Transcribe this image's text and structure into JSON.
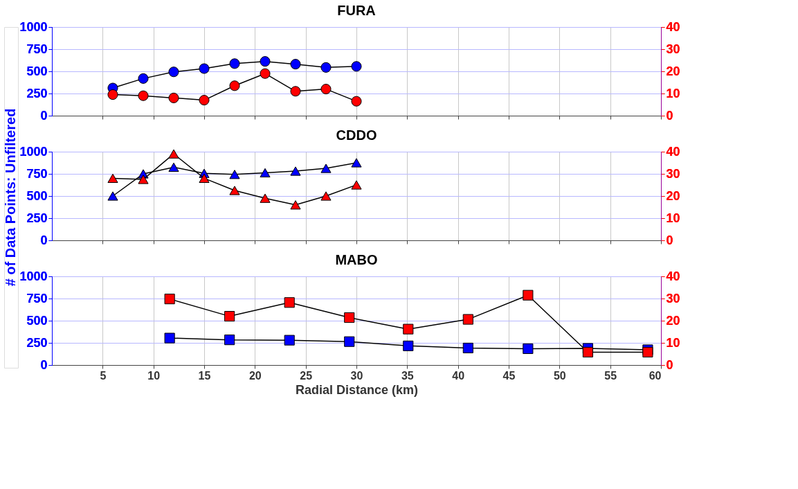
{
  "chart_data": [
    {
      "type": "line",
      "title": "FURA",
      "marker": "circle",
      "grid": true,
      "tick_labels": "y",
      "xlim": [
        0,
        60
      ],
      "xticks": [
        5,
        10,
        15,
        20,
        25,
        30,
        35,
        40,
        45,
        50,
        55,
        60
      ],
      "ylim": [
        0,
        1000
      ],
      "yticks": [
        0,
        250,
        500,
        750,
        1000
      ],
      "y2lim": [
        0,
        40
      ],
      "y2ticks": [
        0,
        10,
        20,
        30,
        40
      ],
      "series": [
        {
          "color": "#0000ff",
          "x": [
            6,
            9,
            12,
            15,
            18,
            21,
            24,
            27,
            30
          ],
          "values": [
            312,
            419,
            494,
            531,
            587,
            612,
            581,
            544,
            556
          ]
        },
        {
          "color": "#ff0000",
          "axis": "y2",
          "x": [
            6,
            9,
            12,
            15,
            18,
            21,
            24,
            27,
            30
          ],
          "values": [
            9.5,
            9,
            8,
            7,
            13.5,
            19,
            11,
            12,
            6.5
          ]
        }
      ]
    },
    {
      "type": "line",
      "title": "CDDO",
      "ylabel": "# of Data Points: Unfiltered",
      "marker": "triangle",
      "grid": true,
      "tick_labels": "y",
      "xlim": [
        0,
        60
      ],
      "xticks": [
        5,
        10,
        15,
        20,
        25,
        30,
        35,
        40,
        45,
        50,
        55,
        60
      ],
      "ylim": [
        0,
        1000
      ],
      "yticks": [
        0,
        250,
        500,
        750,
        1000
      ],
      "y2lim": [
        0,
        40
      ],
      "y2ticks": [
        0,
        10,
        20,
        30,
        40
      ],
      "series": [
        {
          "color": "#0000ff",
          "x": [
            6,
            9,
            12,
            15,
            18,
            21,
            24,
            27,
            30
          ],
          "values": [
            500,
            750,
            825,
            756,
            744,
            762,
            781,
            812,
            875
          ]
        },
        {
          "color": "#ff0000",
          "axis": "y2",
          "x": [
            6,
            9,
            12,
            15,
            18,
            21,
            24,
            27,
            30
          ],
          "values": [
            28,
            27.5,
            39,
            28,
            22.5,
            19,
            16,
            20,
            25
          ]
        }
      ]
    },
    {
      "type": "line",
      "title": "MABO",
      "xlabel": "Radial Distance (km)",
      "marker": "square",
      "grid": true,
      "xlim": [
        0,
        60
      ],
      "xticks": [
        5,
        10,
        15,
        20,
        25,
        30,
        35,
        40,
        45,
        50,
        55,
        60
      ],
      "ylim": [
        0,
        1000
      ],
      "yticks": [
        0,
        250,
        500,
        750,
        1000
      ],
      "y2lim": [
        0,
        40
      ],
      "y2ticks": [
        0,
        10,
        20,
        30,
        40
      ],
      "series": [
        {
          "color": "#0000ff",
          "x": [
            11.6,
            17.5,
            23.4,
            29.3,
            35.1,
            41,
            46.9,
            52.8,
            58.7
          ],
          "values": [
            304,
            284,
            280,
            264,
            216,
            192,
            184,
            188,
            172
          ]
        },
        {
          "color": "#ff0000",
          "axis": "y2",
          "x": [
            11.6,
            17.5,
            23.4,
            29.3,
            35.1,
            41,
            46.9,
            52.8,
            58.7
          ],
          "values": [
            29.8,
            22,
            28.2,
            21.4,
            16.2,
            20.6,
            31.5,
            5.8,
            5.8
          ]
        }
      ]
    }
  ]
}
